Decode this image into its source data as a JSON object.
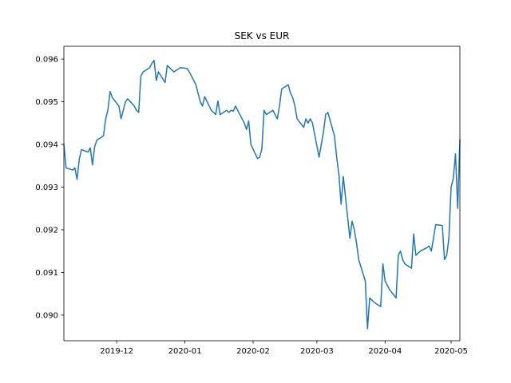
{
  "chart_data": {
    "type": "line",
    "title": "SEK vs EUR",
    "xlabel": "",
    "ylabel": "",
    "x_range": [
      "2019-11-07",
      "2020-05-05"
    ],
    "ylim": [
      0.0894,
      0.0963
    ],
    "grid": false,
    "legend": "none",
    "x_ticks": [
      {
        "date": "2019-12-01",
        "label": "2019-12"
      },
      {
        "date": "2020-01-01",
        "label": "2020-01"
      },
      {
        "date": "2020-02-01",
        "label": "2020-02"
      },
      {
        "date": "2020-03-01",
        "label": "2020-03"
      },
      {
        "date": "2020-04-01",
        "label": "2020-04"
      },
      {
        "date": "2020-05-01",
        "label": "2020-05"
      }
    ],
    "y_ticks": [
      {
        "value": 0.09,
        "label": "0.090"
      },
      {
        "value": 0.091,
        "label": "0.091"
      },
      {
        "value": 0.092,
        "label": "0.092"
      },
      {
        "value": 0.093,
        "label": "0.093"
      },
      {
        "value": 0.094,
        "label": "0.094"
      },
      {
        "value": 0.095,
        "label": "0.095"
      },
      {
        "value": 0.096,
        "label": "0.096"
      }
    ],
    "series": [
      {
        "color": "#1f77b4",
        "points": [
          [
            "2019-11-07",
            0.094
          ],
          [
            "2019-11-08",
            0.09345
          ],
          [
            "2019-11-11",
            0.0934
          ],
          [
            "2019-11-12",
            0.09345
          ],
          [
            "2019-11-13",
            0.09318
          ],
          [
            "2019-11-14",
            0.09365
          ],
          [
            "2019-11-15",
            0.09388
          ],
          [
            "2019-11-18",
            0.09382
          ],
          [
            "2019-11-19",
            0.09392
          ],
          [
            "2019-11-20",
            0.09352
          ],
          [
            "2019-11-21",
            0.09395
          ],
          [
            "2019-11-22",
            0.0941
          ],
          [
            "2019-11-25",
            0.0942
          ],
          [
            "2019-11-26",
            0.0946
          ],
          [
            "2019-11-27",
            0.0948
          ],
          [
            "2019-11-28",
            0.09524
          ],
          [
            "2019-11-29",
            0.0951
          ],
          [
            "2019-12-02",
            0.0949
          ],
          [
            "2019-12-03",
            0.0946
          ],
          [
            "2019-12-04",
            0.0948
          ],
          [
            "2019-12-05",
            0.095
          ],
          [
            "2019-12-06",
            0.09507
          ],
          [
            "2019-12-09",
            0.0949
          ],
          [
            "2019-12-10",
            0.0948
          ],
          [
            "2019-12-11",
            0.09475
          ],
          [
            "2019-12-12",
            0.0956
          ],
          [
            "2019-12-13",
            0.0957
          ],
          [
            "2019-12-16",
            0.0958
          ],
          [
            "2019-12-17",
            0.0959
          ],
          [
            "2019-12-18",
            0.09597
          ],
          [
            "2019-12-19",
            0.0955
          ],
          [
            "2019-12-20",
            0.0957
          ],
          [
            "2019-12-23",
            0.09545
          ],
          [
            "2019-12-24",
            0.09585
          ],
          [
            "2019-12-27",
            0.0957
          ],
          [
            "2019-12-30",
            0.0958
          ],
          [
            "2020-01-02",
            0.09578
          ],
          [
            "2020-01-03",
            0.0957
          ],
          [
            "2020-01-06",
            0.0954
          ],
          [
            "2020-01-07",
            0.0952
          ],
          [
            "2020-01-08",
            0.095
          ],
          [
            "2020-01-09",
            0.0949
          ],
          [
            "2020-01-10",
            0.09512
          ],
          [
            "2020-01-13",
            0.0948
          ],
          [
            "2020-01-14",
            0.09475
          ],
          [
            "2020-01-15",
            0.0947
          ],
          [
            "2020-01-16",
            0.09502
          ],
          [
            "2020-01-17",
            0.0947
          ],
          [
            "2020-01-20",
            0.0948
          ],
          [
            "2020-01-21",
            0.09475
          ],
          [
            "2020-01-22",
            0.0948
          ],
          [
            "2020-01-23",
            0.09478
          ],
          [
            "2020-01-24",
            0.0949
          ],
          [
            "2020-01-27",
            0.0946
          ],
          [
            "2020-01-28",
            0.0945
          ],
          [
            "2020-01-29",
            0.09435
          ],
          [
            "2020-01-30",
            0.09455
          ],
          [
            "2020-01-31",
            0.094
          ],
          [
            "2020-02-03",
            0.09367
          ],
          [
            "2020-02-04",
            0.0937
          ],
          [
            "2020-02-05",
            0.0939
          ],
          [
            "2020-02-06",
            0.0948
          ],
          [
            "2020-02-07",
            0.0947
          ],
          [
            "2020-02-10",
            0.0948
          ],
          [
            "2020-02-11",
            0.0947
          ],
          [
            "2020-02-12",
            0.0946
          ],
          [
            "2020-02-13",
            0.0949
          ],
          [
            "2020-02-14",
            0.0953
          ],
          [
            "2020-02-17",
            0.0954
          ],
          [
            "2020-02-18",
            0.0952
          ],
          [
            "2020-02-19",
            0.0951
          ],
          [
            "2020-02-20",
            0.0949
          ],
          [
            "2020-02-21",
            0.0946
          ],
          [
            "2020-02-24",
            0.0944
          ],
          [
            "2020-02-25",
            0.0946
          ],
          [
            "2020-02-26",
            0.0945
          ],
          [
            "2020-02-27",
            0.0946
          ],
          [
            "2020-02-28",
            0.0945
          ],
          [
            "2020-03-02",
            0.0937
          ],
          [
            "2020-03-03",
            0.094
          ],
          [
            "2020-03-04",
            0.0943
          ],
          [
            "2020-03-05",
            0.0947
          ],
          [
            "2020-03-06",
            0.09475
          ],
          [
            "2020-03-09",
            0.0942
          ],
          [
            "2020-03-10",
            0.0937
          ],
          [
            "2020-03-11",
            0.0933
          ],
          [
            "2020-03-12",
            0.0926
          ],
          [
            "2020-03-13",
            0.09325
          ],
          [
            "2020-03-16",
            0.0918
          ],
          [
            "2020-03-17",
            0.0922
          ],
          [
            "2020-03-18",
            0.092
          ],
          [
            "2020-03-19",
            0.0917
          ],
          [
            "2020-03-20",
            0.0913
          ],
          [
            "2020-03-23",
            0.0908
          ],
          [
            "2020-03-24",
            0.08968
          ],
          [
            "2020-03-25",
            0.0904
          ],
          [
            "2020-03-26",
            0.09035
          ],
          [
            "2020-03-27",
            0.0903
          ],
          [
            "2020-03-30",
            0.0902
          ],
          [
            "2020-03-31",
            0.0912
          ],
          [
            "2020-04-01",
            0.0908
          ],
          [
            "2020-04-02",
            0.0907
          ],
          [
            "2020-04-03",
            0.0906
          ],
          [
            "2020-04-06",
            0.0904
          ],
          [
            "2020-04-07",
            0.0914
          ],
          [
            "2020-04-08",
            0.0915
          ],
          [
            "2020-04-09",
            0.0913
          ],
          [
            "2020-04-10",
            0.0912
          ],
          [
            "2020-04-13",
            0.0911
          ],
          [
            "2020-04-14",
            0.0919
          ],
          [
            "2020-04-15",
            0.0914
          ],
          [
            "2020-04-16",
            0.09145
          ],
          [
            "2020-04-17",
            0.0915
          ],
          [
            "2020-04-20",
            0.09158
          ],
          [
            "2020-04-21",
            0.09162
          ],
          [
            "2020-04-22",
            0.0915
          ],
          [
            "2020-04-23",
            0.0918
          ],
          [
            "2020-04-24",
            0.09212
          ],
          [
            "2020-04-27",
            0.0921
          ],
          [
            "2020-04-28",
            0.0913
          ],
          [
            "2020-04-29",
            0.0914
          ],
          [
            "2020-04-30",
            0.0918
          ],
          [
            "2020-05-01",
            0.093
          ],
          [
            "2020-05-02",
            0.0932
          ],
          [
            "2020-05-03",
            0.09378
          ],
          [
            "2020-05-04",
            0.0925
          ],
          [
            "2020-05-05",
            0.0941
          ]
        ]
      }
    ]
  }
}
